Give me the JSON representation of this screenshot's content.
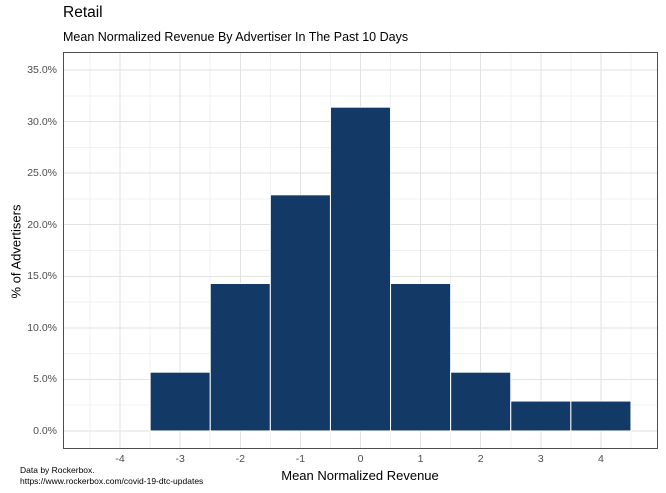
{
  "page": {
    "title": "Retail",
    "subtitle": "Mean Normalized Revenue By Advertiser In The Past 10 Days",
    "caption_line1": "Data by Rockerbox.",
    "caption_line2": "https://www.rockerbox.com/covid-19-dtc-updates"
  },
  "chart_data": {
    "type": "bar",
    "title": "Retail",
    "subtitle": "Mean Normalized Revenue By Advertiser In The Past 10 Days",
    "xlabel": "Mean Normalized Revenue",
    "ylabel": "% of Advertisers",
    "caption": "Data by Rockerbox. https://www.rockerbox.com/covid-19-dtc-updates",
    "bin_centers": [
      -3,
      -2,
      -1,
      0,
      1,
      2,
      3,
      4
    ],
    "values_pct": [
      5.7,
      14.3,
      22.9,
      31.4,
      14.3,
      5.7,
      2.9,
      2.9
    ],
    "bar_width": 1,
    "x_ticks": [
      -4,
      -3,
      -2,
      -1,
      0,
      1,
      2,
      3,
      4
    ],
    "x_tick_labels": [
      "-4",
      "-3",
      "-2",
      "-1",
      "0",
      "1",
      "2",
      "3",
      "4"
    ],
    "y_ticks": [
      0,
      5,
      10,
      15,
      20,
      25,
      30,
      35
    ],
    "y_tick_labels": [
      "0.0%",
      "5.0%",
      "10.0%",
      "15.0%",
      "20.0%",
      "25.0%",
      "30.0%",
      "35.0%"
    ],
    "xlim": [
      -4.95,
      4.95
    ],
    "ylim_pct": [
      -1.75,
      36.75
    ],
    "grid": "major-and-minor",
    "legend": "none",
    "colors": {
      "bar_fill": "#133A66",
      "bar_stroke": "#FFFFFF",
      "panel_border": "#4D4D4D",
      "panel_background": "#FFFFFF",
      "grid_major": "#E2E2E2",
      "grid_minor": "#F0F0F0",
      "tick_label": "#4D4D4D",
      "text": "#000000"
    }
  }
}
